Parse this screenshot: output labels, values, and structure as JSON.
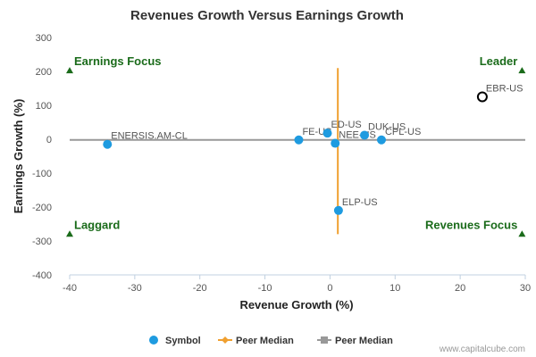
{
  "chart_data": {
    "type": "scatter",
    "title": "Revenues Growth Versus Earnings Growth",
    "xlabel": "Revenue Growth (%)",
    "ylabel": "Earnings Growth (%)",
    "xlim": [
      -40,
      30
    ],
    "ylim": [
      -400,
      300
    ],
    "x_ticks": [
      -40,
      -30,
      -20,
      -10,
      0,
      10,
      20,
      30
    ],
    "y_ticks": [
      -400,
      -300,
      -200,
      -100,
      0,
      100,
      200,
      300
    ],
    "grid": false,
    "points": [
      {
        "label": "ENERSIS.AM-CL",
        "x": -34.2,
        "y": -15,
        "style": "filled"
      },
      {
        "label": "FE-US",
        "x": -4.8,
        "y": -2,
        "style": "filled"
      },
      {
        "label": "ED-US",
        "x": -0.4,
        "y": 18,
        "style": "filled"
      },
      {
        "label": "NEE-US",
        "x": 0.8,
        "y": -12,
        "style": "filled"
      },
      {
        "label": "DUK-US",
        "x": 5.3,
        "y": 12,
        "style": "filled"
      },
      {
        "label": "CPL-US",
        "x": 7.9,
        "y": -2,
        "style": "filled"
      },
      {
        "label": "ELP-US",
        "x": 1.3,
        "y": -210,
        "style": "filled"
      },
      {
        "label": "EBR-US",
        "x": 23.4,
        "y": 125,
        "style": "open"
      }
    ],
    "peer_median_vertical": {
      "x": 1.2,
      "y_range": [
        -280,
        210
      ]
    },
    "peer_median_horizontal": {
      "y": -2,
      "x_range": [
        -40,
        30
      ]
    },
    "quadrants": [
      {
        "label": "Earnings Focus",
        "x": -40,
        "y": 205,
        "anchor": "start"
      },
      {
        "label": "Leader",
        "x": 29.5,
        "y": 205,
        "anchor": "end"
      },
      {
        "label": "Laggard",
        "x": -40,
        "y": -277,
        "anchor": "start"
      },
      {
        "label": "Revenues Focus",
        "x": 29.5,
        "y": -277,
        "anchor": "end"
      }
    ],
    "legend": {
      "placement": "bottom",
      "items": [
        {
          "label": "Symbol",
          "marker": "circle",
          "color": "#1e9be0"
        },
        {
          "label": "Peer Median",
          "marker": "diamond-line",
          "color": "#f0a030"
        },
        {
          "label": "Peer Median",
          "marker": "square-line",
          "color": "#999999"
        }
      ]
    }
  },
  "colors": {
    "point_fill": "#1e9be0",
    "vertical_median": "#f0a030",
    "horizontal_median": "#999999",
    "quadrant_marker": "#1a6b1a",
    "axis_line": "#c0d0e0"
  },
  "credit": "www.capitalcube.com"
}
